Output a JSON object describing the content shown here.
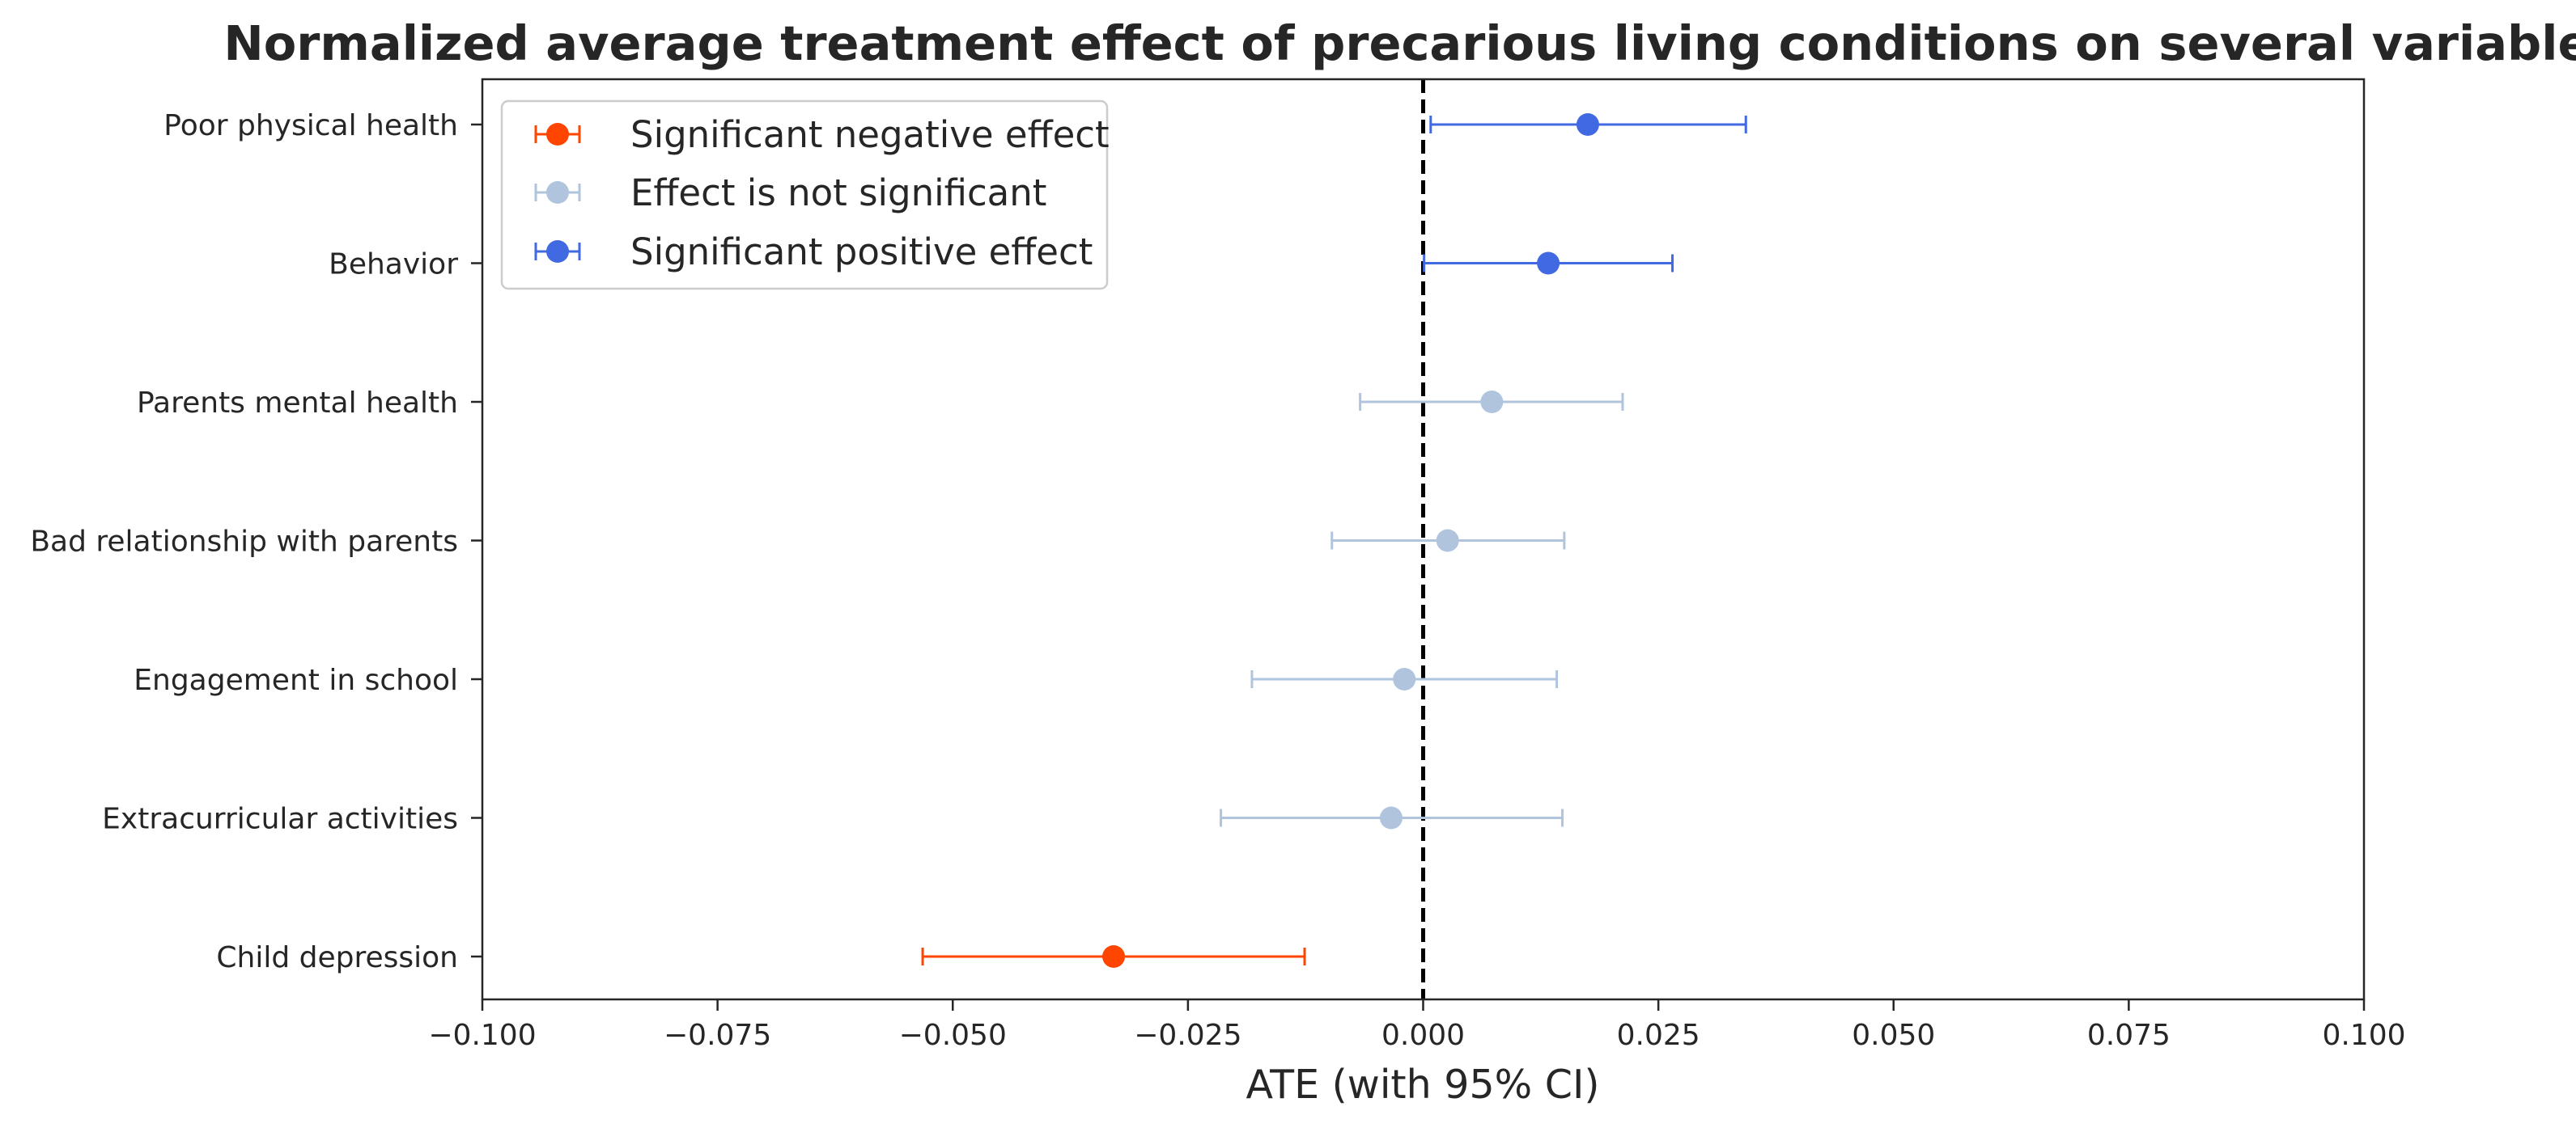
{
  "chart_data": {
    "type": "scatter",
    "title": "Normalized average treatment effect of precarious living conditions on several variables",
    "xlabel": "ATE (with 95% CI)",
    "ylabel": "",
    "xlim": [
      -0.1,
      0.1
    ],
    "x_ticks": [
      "−0.100",
      "−0.075",
      "−0.050",
      "−0.025",
      "0.000",
      "0.025",
      "0.050",
      "0.075",
      "0.100"
    ],
    "x_tick_values": [
      -0.1,
      -0.075,
      -0.05,
      -0.025,
      0.0,
      0.025,
      0.05,
      0.075,
      0.1
    ],
    "categories": [
      "Poor physical health",
      "Behavior",
      "Parents mental health",
      "Bad relationship with parents",
      "Engagement in school",
      "Extracurricular activities",
      "Child depression"
    ],
    "points": [
      {
        "label": "Poor physical health",
        "estimate": 0.0175,
        "ci_low": 0.0008,
        "ci_high": 0.0343,
        "group": "positive"
      },
      {
        "label": "Behavior",
        "estimate": 0.0133,
        "ci_low": 0.0001,
        "ci_high": 0.0265,
        "group": "positive"
      },
      {
        "label": "Parents mental health",
        "estimate": 0.0073,
        "ci_low": -0.0067,
        "ci_high": 0.0212,
        "group": "not_significant"
      },
      {
        "label": "Bad relationship with parents",
        "estimate": 0.0026,
        "ci_low": -0.0097,
        "ci_high": 0.015,
        "group": "not_significant"
      },
      {
        "label": "Engagement in school",
        "estimate": -0.002,
        "ci_low": -0.0182,
        "ci_high": 0.0142,
        "group": "not_significant"
      },
      {
        "label": "Extracurricular activities",
        "estimate": -0.0034,
        "ci_low": -0.0215,
        "ci_high": 0.0148,
        "group": "not_significant"
      },
      {
        "label": "Child depression",
        "estimate": -0.0329,
        "ci_low": -0.0532,
        "ci_high": -0.0126,
        "group": "negative"
      }
    ],
    "series": [
      {
        "key": "negative",
        "name": "Significant negative effect",
        "color": "#ff4500"
      },
      {
        "key": "not_significant",
        "name": "Effect is not significant",
        "color": "#b0c4de"
      },
      {
        "key": "positive",
        "name": "Significant positive effect",
        "color": "#4169e1"
      }
    ],
    "reference_line": {
      "x": 0.0,
      "style": "dashed",
      "color": "#000000"
    },
    "legend_position": "top-left",
    "grid": false
  }
}
